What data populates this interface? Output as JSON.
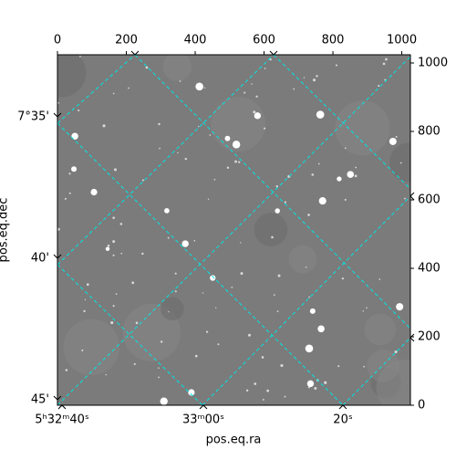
{
  "chart_data": {
    "type": "image",
    "xlabel": "pos.eq.ra",
    "ylabel": "pos.eq.dec",
    "xlim": [
      0,
      1025
    ],
    "xticks": [
      0,
      200,
      400,
      600,
      800,
      1000
    ],
    "ylim": [
      0,
      1024
    ],
    "yticks": [
      0,
      200,
      400,
      600,
      800,
      1000
    ],
    "ra_labels": [
      "5ʰ32ᵐ40ˢ",
      "33ᵐ00ˢ",
      "20ˢ"
    ],
    "dec_labels": [
      "7°35'",
      "40'",
      "45'"
    ],
    "grid_color": "#00e5e5"
  }
}
